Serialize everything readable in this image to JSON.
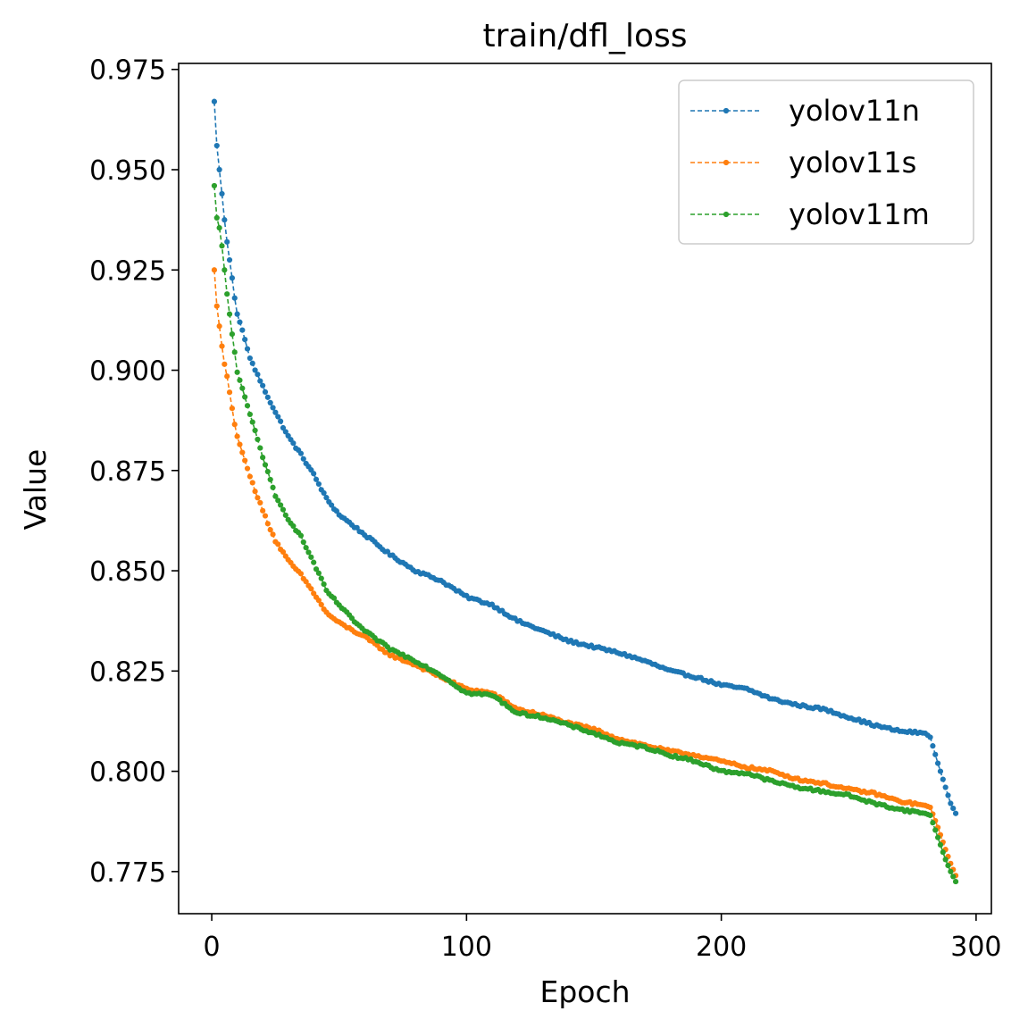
{
  "chart_data": {
    "type": "line",
    "title": "train/dfl_loss",
    "xlabel": "Epoch",
    "ylabel": "Value",
    "xlim": [
      -13,
      306
    ],
    "ylim": [
      0.7645,
      0.9765
    ],
    "xticks": [
      0,
      100,
      200,
      300
    ],
    "xtick_labels": [
      "0",
      "100",
      "200",
      "300"
    ],
    "yticks": [
      0.775,
      0.8,
      0.825,
      0.85,
      0.875,
      0.9,
      0.925,
      0.95,
      0.975
    ],
    "ytick_labels": [
      "0.775",
      "0.800",
      "0.825",
      "0.850",
      "0.875",
      "0.900",
      "0.925",
      "0.950",
      "0.975"
    ],
    "grid": false,
    "legend_position": "top-right",
    "line_style": "dashed with dot markers",
    "x_range": [
      1,
      292
    ],
    "series": [
      {
        "name": "yolov11n",
        "color": "#1f77b4",
        "keypoints": [
          [
            1,
            0.967
          ],
          [
            2,
            0.956
          ],
          [
            3,
            0.95
          ],
          [
            4,
            0.944
          ],
          [
            5,
            0.9375
          ],
          [
            6,
            0.932
          ],
          [
            7,
            0.9275
          ],
          [
            8,
            0.923
          ],
          [
            9,
            0.918
          ],
          [
            10,
            0.914
          ],
          [
            12,
            0.91
          ],
          [
            15,
            0.903
          ],
          [
            20,
            0.896
          ],
          [
            25,
            0.8895
          ],
          [
            30,
            0.8835
          ],
          [
            35,
            0.879
          ],
          [
            40,
            0.874
          ],
          [
            45,
            0.868
          ],
          [
            50,
            0.864
          ],
          [
            55,
            0.8615
          ],
          [
            60,
            0.859
          ],
          [
            70,
            0.854
          ],
          [
            80,
            0.85
          ],
          [
            90,
            0.8475
          ],
          [
            100,
            0.8435
          ],
          [
            110,
            0.8415
          ],
          [
            120,
            0.8375
          ],
          [
            130,
            0.835
          ],
          [
            140,
            0.8325
          ],
          [
            150,
            0.831
          ],
          [
            160,
            0.8295
          ],
          [
            170,
            0.8275
          ],
          [
            180,
            0.825
          ],
          [
            190,
            0.8235
          ],
          [
            200,
            0.8215
          ],
          [
            210,
            0.8205
          ],
          [
            220,
            0.818
          ],
          [
            230,
            0.8165
          ],
          [
            240,
            0.8155
          ],
          [
            250,
            0.8135
          ],
          [
            260,
            0.8115
          ],
          [
            270,
            0.81
          ],
          [
            280,
            0.8095
          ],
          [
            282,
            0.8085
          ],
          [
            285,
            0.802
          ],
          [
            288,
            0.796
          ],
          [
            290,
            0.792
          ],
          [
            292,
            0.7895
          ]
        ]
      },
      {
        "name": "yolov11s",
        "color": "#ff7f0e",
        "keypoints": [
          [
            1,
            0.925
          ],
          [
            2,
            0.916
          ],
          [
            3,
            0.911
          ],
          [
            4,
            0.906
          ],
          [
            5,
            0.9015
          ],
          [
            6,
            0.8985
          ],
          [
            7,
            0.8945
          ],
          [
            8,
            0.8905
          ],
          [
            9,
            0.8865
          ],
          [
            10,
            0.8835
          ],
          [
            12,
            0.8795
          ],
          [
            15,
            0.8735
          ],
          [
            20,
            0.865
          ],
          [
            25,
            0.8575
          ],
          [
            30,
            0.8525
          ],
          [
            35,
            0.849
          ],
          [
            40,
            0.8445
          ],
          [
            45,
            0.8395
          ],
          [
            50,
            0.837
          ],
          [
            60,
            0.8335
          ],
          [
            70,
            0.829
          ],
          [
            80,
            0.8265
          ],
          [
            90,
            0.8235
          ],
          [
            100,
            0.8205
          ],
          [
            110,
            0.8195
          ],
          [
            120,
            0.8155
          ],
          [
            130,
            0.814
          ],
          [
            140,
            0.812
          ],
          [
            150,
            0.8105
          ],
          [
            160,
            0.808
          ],
          [
            170,
            0.8065
          ],
          [
            180,
            0.805
          ],
          [
            190,
            0.804
          ],
          [
            200,
            0.8025
          ],
          [
            210,
            0.801
          ],
          [
            220,
            0.8
          ],
          [
            230,
            0.798
          ],
          [
            240,
            0.797
          ],
          [
            250,
            0.7955
          ],
          [
            260,
            0.7945
          ],
          [
            270,
            0.7925
          ],
          [
            280,
            0.7915
          ],
          [
            282,
            0.791
          ],
          [
            285,
            0.786
          ],
          [
            288,
            0.7805
          ],
          [
            290,
            0.777
          ],
          [
            292,
            0.774
          ]
        ]
      },
      {
        "name": "yolov11m",
        "color": "#2ca02c",
        "keypoints": [
          [
            1,
            0.946
          ],
          [
            2,
            0.938
          ],
          [
            3,
            0.9355
          ],
          [
            4,
            0.931
          ],
          [
            5,
            0.925
          ],
          [
            6,
            0.919
          ],
          [
            7,
            0.914
          ],
          [
            8,
            0.909
          ],
          [
            9,
            0.9045
          ],
          [
            10,
            0.8995
          ],
          [
            12,
            0.8955
          ],
          [
            15,
            0.889
          ],
          [
            20,
            0.8785
          ],
          [
            25,
            0.8685
          ],
          [
            30,
            0.863
          ],
          [
            35,
            0.8585
          ],
          [
            40,
            0.852
          ],
          [
            45,
            0.845
          ],
          [
            50,
            0.8415
          ],
          [
            55,
            0.838
          ],
          [
            60,
            0.835
          ],
          [
            70,
            0.8305
          ],
          [
            80,
            0.8275
          ],
          [
            90,
            0.824
          ],
          [
            100,
            0.8195
          ],
          [
            110,
            0.819
          ],
          [
            120,
            0.8145
          ],
          [
            130,
            0.8135
          ],
          [
            140,
            0.8115
          ],
          [
            150,
            0.8095
          ],
          [
            160,
            0.807
          ],
          [
            170,
            0.806
          ],
          [
            180,
            0.804
          ],
          [
            190,
            0.8025
          ],
          [
            200,
            0.8
          ],
          [
            210,
            0.7995
          ],
          [
            220,
            0.7975
          ],
          [
            230,
            0.796
          ],
          [
            240,
            0.795
          ],
          [
            250,
            0.794
          ],
          [
            260,
            0.792
          ],
          [
            270,
            0.7905
          ],
          [
            280,
            0.7895
          ],
          [
            282,
            0.789
          ],
          [
            285,
            0.7835
          ],
          [
            288,
            0.778
          ],
          [
            290,
            0.775
          ],
          [
            292,
            0.7725
          ]
        ]
      }
    ]
  }
}
